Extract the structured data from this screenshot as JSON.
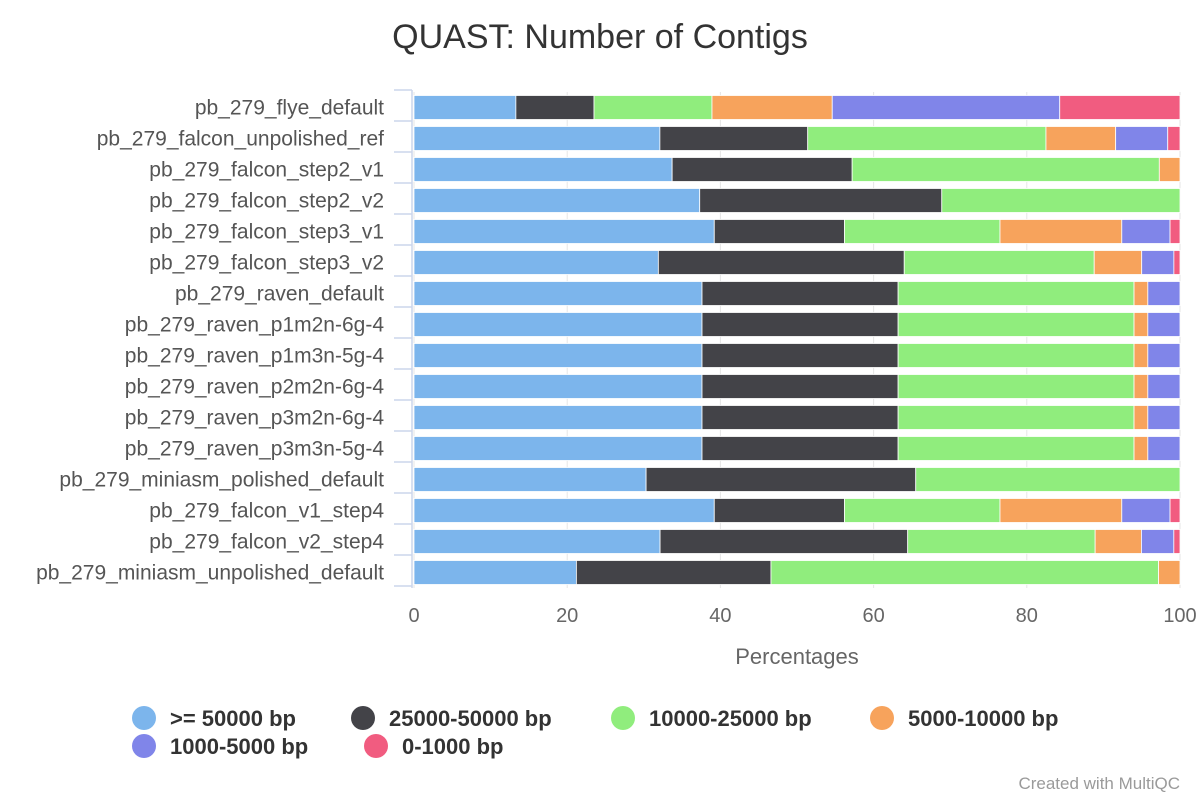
{
  "chart_data": {
    "type": "bar",
    "orientation": "horizontal",
    "stacking": "percent",
    "title": "QUAST: Number of Contigs",
    "xlabel": "Percentages",
    "xlim": [
      0,
      100
    ],
    "xticks": [
      0,
      20,
      40,
      60,
      80,
      100
    ],
    "grid": true,
    "legend_position": "bottom",
    "categories": [
      "pb_279_flye_default",
      "pb_279_falcon_unpolished_ref",
      "pb_279_falcon_step2_v1",
      "pb_279_falcon_step2_v2",
      "pb_279_falcon_step3_v1",
      "pb_279_falcon_step3_v2",
      "pb_279_raven_default",
      "pb_279_raven_p1m2n-6g-4",
      "pb_279_raven_p1m3n-5g-4",
      "pb_279_raven_p2m2n-6g-4",
      "pb_279_raven_p3m2n-6g-4",
      "pb_279_raven_p3m3n-5g-4",
      "pb_279_miniasm_polished_default",
      "pb_279_falcon_v1_step4",
      "pb_279_falcon_v2_step4",
      "pb_279_miniasm_unpolished_default"
    ],
    "series": [
      {
        "name": ">= 50000 bp",
        "color": "#7cb5ec",
        "values": [
          13.3,
          32.1,
          33.7,
          37.3,
          39.2,
          31.9,
          37.6,
          37.6,
          37.6,
          37.6,
          37.6,
          37.6,
          30.3,
          39.2,
          31.9,
          21.2
        ]
      },
      {
        "name": "25000-50000 bp",
        "color": "#434348",
        "values": [
          10.2,
          19.3,
          23.5,
          31.6,
          17.0,
          32.1,
          25.6,
          25.6,
          25.6,
          25.6,
          25.6,
          25.6,
          35.2,
          17.0,
          32.1,
          25.4
        ]
      },
      {
        "name": "10000-25000 bp",
        "color": "#90ed7d",
        "values": [
          15.4,
          31.1,
          40.1,
          31.1,
          20.3,
          24.8,
          30.8,
          30.8,
          30.8,
          30.8,
          30.8,
          30.8,
          34.5,
          20.3,
          24.3,
          50.6
        ]
      },
      {
        "name": "5000-10000 bp",
        "color": "#f7a35c",
        "values": [
          15.7,
          9.1,
          2.7,
          0,
          15.9,
          6.2,
          1.8,
          1.8,
          1.8,
          1.8,
          1.8,
          1.8,
          0,
          15.9,
          6.0,
          2.8
        ]
      },
      {
        "name": "1000-5000 bp",
        "color": "#8085e9",
        "values": [
          29.7,
          6.8,
          0,
          0,
          6.3,
          4.2,
          4.2,
          4.2,
          4.2,
          4.2,
          4.2,
          4.2,
          0,
          6.3,
          4.2,
          0
        ]
      },
      {
        "name": "0-1000 bp",
        "color": "#f15c80",
        "values": [
          15.7,
          1.6,
          0,
          0,
          1.3,
          0.8,
          0,
          0,
          0,
          0,
          0,
          0,
          0,
          1.3,
          0.8,
          0
        ]
      }
    ]
  },
  "footer": {
    "credit": "Created with MultiQC"
  }
}
